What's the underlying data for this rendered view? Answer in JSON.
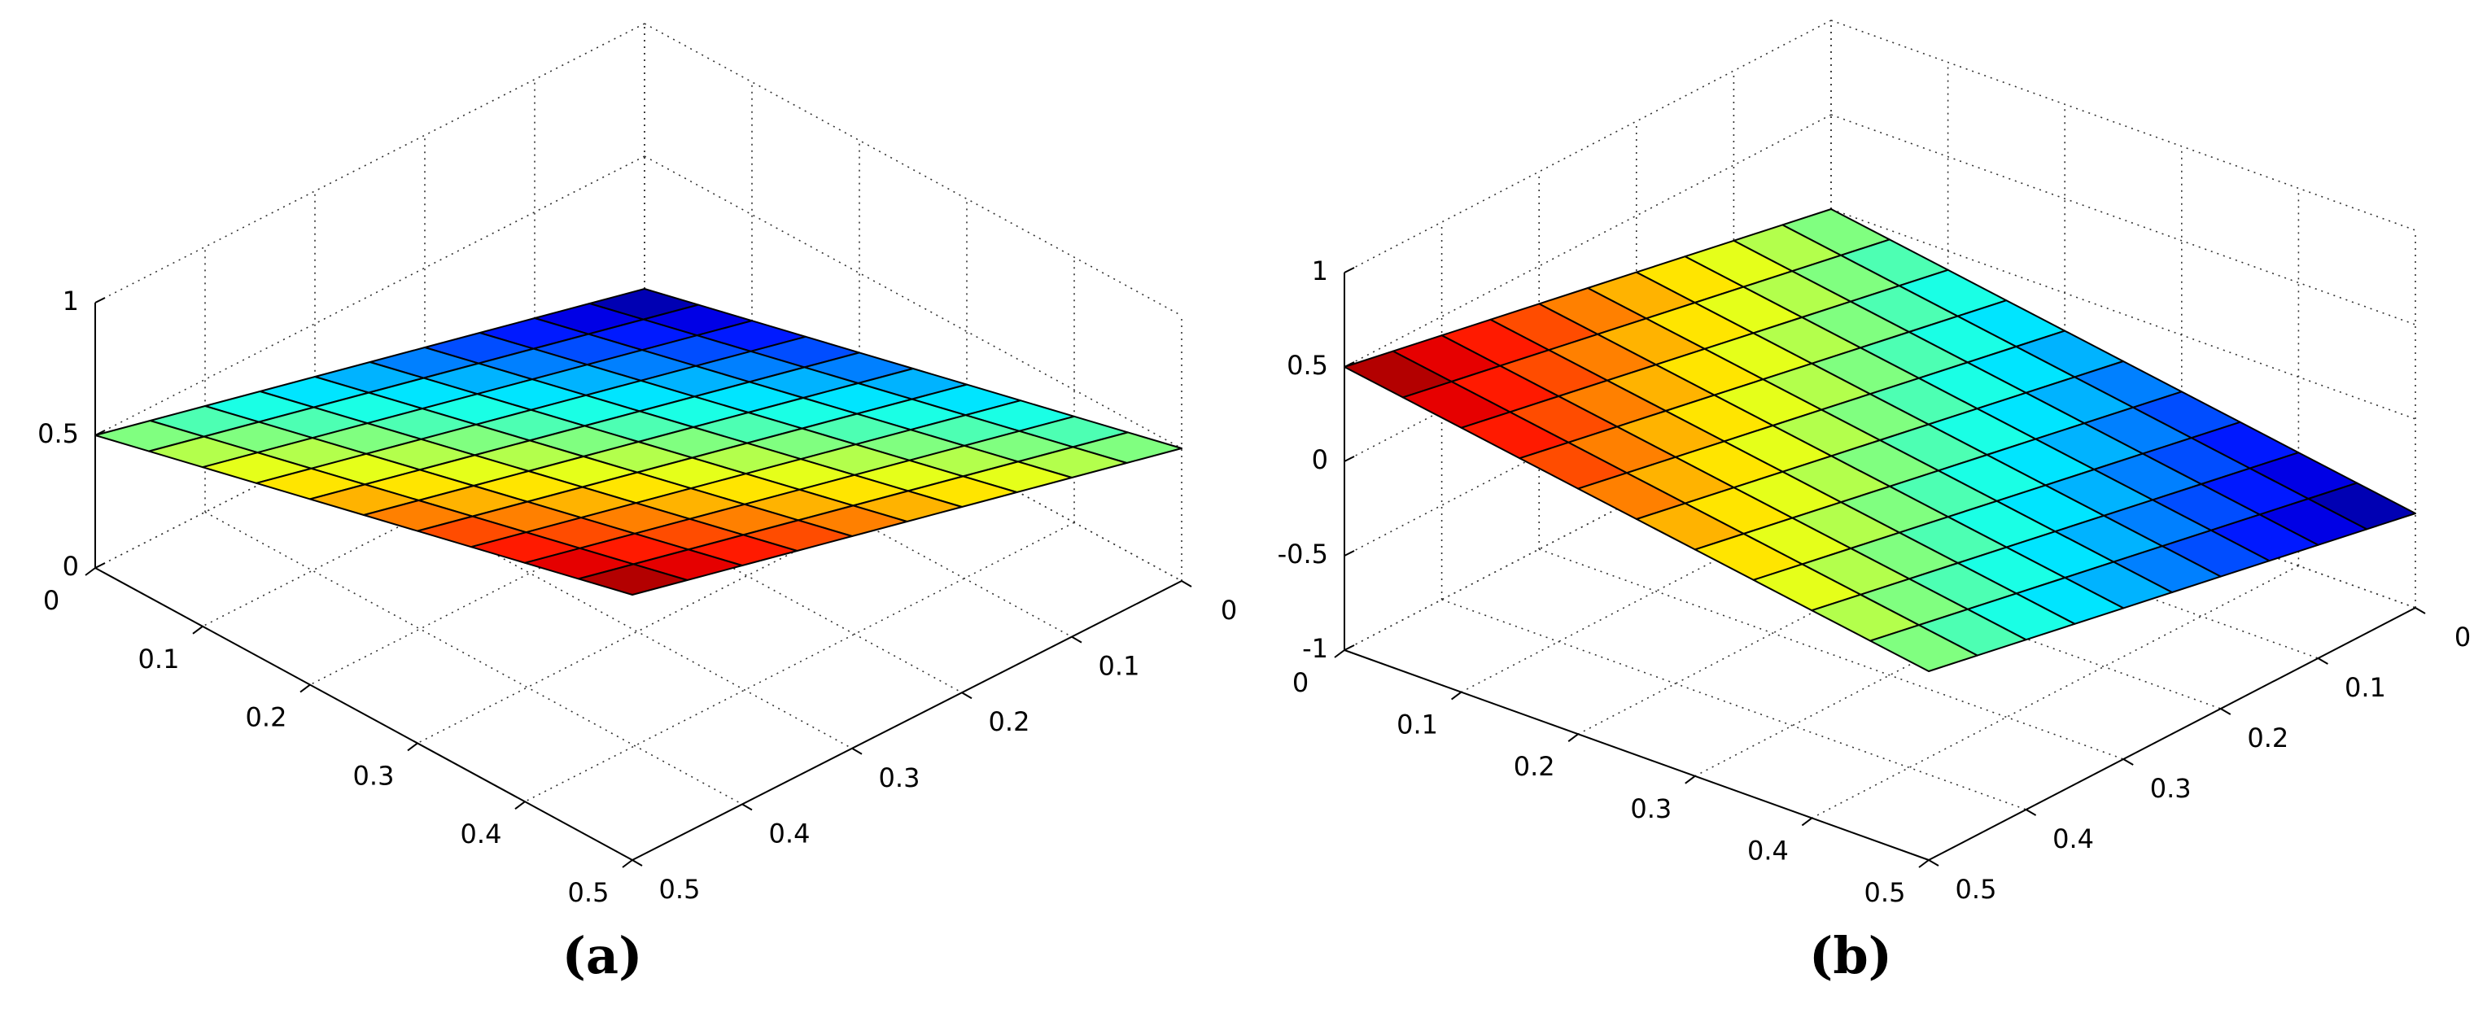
{
  "chart_data": [
    {
      "type": "surface3d",
      "title": "(a)",
      "colormap": "jet",
      "grid": true,
      "x": [
        0,
        0.05,
        0.1,
        0.15,
        0.2,
        0.25,
        0.3,
        0.35,
        0.4,
        0.45,
        0.5
      ],
      "y": [
        0,
        0.05,
        0.1,
        0.15,
        0.2,
        0.25,
        0.3,
        0.35,
        0.4,
        0.45,
        0.5
      ],
      "z": [
        [
          0,
          0.05,
          0.1,
          0.15,
          0.2,
          0.25,
          0.3,
          0.35,
          0.4,
          0.45,
          0.5
        ],
        [
          0.05,
          0.1,
          0.15,
          0.2,
          0.25,
          0.3,
          0.35,
          0.4,
          0.45,
          0.5,
          0.55
        ],
        [
          0.1,
          0.15,
          0.2,
          0.25,
          0.3,
          0.35,
          0.4,
          0.45,
          0.5,
          0.55,
          0.6
        ],
        [
          0.15,
          0.2,
          0.25,
          0.3,
          0.35,
          0.4,
          0.45,
          0.5,
          0.55,
          0.6,
          0.65
        ],
        [
          0.2,
          0.25,
          0.3,
          0.35,
          0.4,
          0.45,
          0.5,
          0.55,
          0.6,
          0.65,
          0.7
        ],
        [
          0.25,
          0.3,
          0.35,
          0.4,
          0.45,
          0.5,
          0.55,
          0.6,
          0.65,
          0.7,
          0.75
        ],
        [
          0.3,
          0.35,
          0.4,
          0.45,
          0.5,
          0.55,
          0.6,
          0.65,
          0.7,
          0.75,
          0.8
        ],
        [
          0.35,
          0.4,
          0.45,
          0.5,
          0.55,
          0.6,
          0.65,
          0.7,
          0.75,
          0.8,
          0.85
        ],
        [
          0.4,
          0.45,
          0.5,
          0.55,
          0.6,
          0.65,
          0.7,
          0.75,
          0.8,
          0.85,
          0.9
        ],
        [
          0.45,
          0.5,
          0.55,
          0.6,
          0.65,
          0.7,
          0.75,
          0.8,
          0.85,
          0.9,
          0.95
        ],
        [
          0.5,
          0.55,
          0.6,
          0.65,
          0.7,
          0.75,
          0.8,
          0.85,
          0.9,
          0.95,
          1
        ]
      ],
      "xlim": [
        0,
        0.5
      ],
      "xticks": [
        0,
        0.1,
        0.2,
        0.3,
        0.4,
        0.5
      ],
      "ylim": [
        0,
        0.5
      ],
      "yticks": [
        0,
        0.1,
        0.2,
        0.3,
        0.4,
        0.5
      ],
      "zlim": [
        0,
        1
      ],
      "zticks": [
        0,
        0.5,
        1
      ]
    },
    {
      "type": "surface3d",
      "title": "(b)",
      "colormap": "jet",
      "grid": true,
      "x": [
        0,
        0.05,
        0.1,
        0.15,
        0.2,
        0.25,
        0.3,
        0.35,
        0.4,
        0.45,
        0.5
      ],
      "y": [
        0,
        0.05,
        0.1,
        0.15,
        0.2,
        0.25,
        0.3,
        0.35,
        0.4,
        0.45,
        0.5
      ],
      "z": [
        [
          0,
          0.05,
          0.1,
          0.15,
          0.2,
          0.25,
          0.3,
          0.35,
          0.4,
          0.45,
          0.5
        ],
        [
          -0.05,
          0,
          0.05,
          0.1,
          0.15,
          0.2,
          0.25,
          0.3,
          0.35,
          0.4,
          0.45
        ],
        [
          -0.1,
          -0.05,
          0,
          0.05,
          0.1,
          0.15,
          0.2,
          0.25,
          0.3,
          0.35,
          0.4
        ],
        [
          -0.15,
          -0.1,
          -0.05,
          0,
          0.05,
          0.1,
          0.15,
          0.2,
          0.25,
          0.3,
          0.35
        ],
        [
          -0.2,
          -0.15,
          -0.1,
          -0.05,
          0,
          0.05,
          0.1,
          0.15,
          0.2,
          0.25,
          0.3
        ],
        [
          -0.25,
          -0.2,
          -0.15,
          -0.1,
          -0.05,
          0,
          0.05,
          0.1,
          0.15,
          0.2,
          0.25
        ],
        [
          -0.3,
          -0.25,
          -0.2,
          -0.15,
          -0.1,
          -0.05,
          0,
          0.05,
          0.1,
          0.15,
          0.2
        ],
        [
          -0.35,
          -0.3,
          -0.25,
          -0.2,
          -0.15,
          -0.1,
          -0.05,
          0,
          0.05,
          0.1,
          0.15
        ],
        [
          -0.4,
          -0.35,
          -0.3,
          -0.25,
          -0.2,
          -0.15,
          -0.1,
          -0.05,
          0,
          0.05,
          0.1
        ],
        [
          -0.45,
          -0.4,
          -0.35,
          -0.3,
          -0.25,
          -0.2,
          -0.15,
          -0.1,
          -0.05,
          0,
          0.05
        ],
        [
          -0.5,
          -0.45,
          -0.4,
          -0.35,
          -0.3,
          -0.25,
          -0.2,
          -0.15,
          -0.1,
          -0.05,
          0
        ]
      ],
      "xlim": [
        0,
        0.5
      ],
      "xticks": [
        0,
        0.1,
        0.2,
        0.3,
        0.4,
        0.5
      ],
      "ylim": [
        0,
        0.5
      ],
      "yticks": [
        0,
        0.1,
        0.2,
        0.3,
        0.4,
        0.5
      ],
      "zlim": [
        -1,
        1
      ],
      "zticks": [
        -1,
        -0.5,
        0,
        0.5,
        1
      ]
    }
  ]
}
